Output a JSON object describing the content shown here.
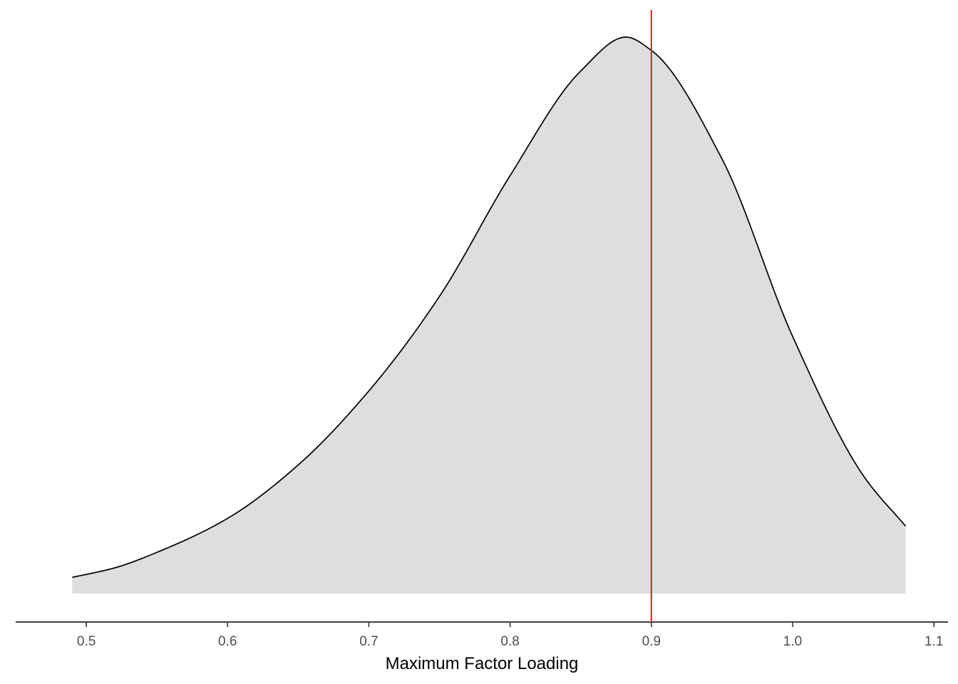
{
  "chart_data": {
    "type": "area",
    "title": "",
    "xlabel": "Maximum Factor Loading",
    "ylabel": "",
    "xlim": [
      0.49,
      1.08
    ],
    "x_axis_range": [
      0.45,
      1.11
    ],
    "xticks": [
      "0.5",
      "0.6",
      "0.7",
      "0.8",
      "0.9",
      "1.0",
      "1.1"
    ],
    "y_axis_visible": false,
    "grid": false,
    "legend": "none",
    "density_curve": {
      "x": [
        0.49,
        0.52,
        0.55,
        0.6,
        0.65,
        0.7,
        0.75,
        0.8,
        0.85,
        0.882,
        0.9,
        0.95,
        1.0,
        1.05,
        1.08
      ],
      "y": [
        0.029,
        0.046,
        0.074,
        0.135,
        0.231,
        0.364,
        0.534,
        0.751,
        0.939,
        1.0,
        0.976,
        0.781,
        0.462,
        0.212,
        0.121
      ]
    },
    "reference_line": {
      "x": 0.9,
      "color": "#E41A1C"
    },
    "fill_color": "#DEDEDE",
    "curve_color": "#000000"
  }
}
